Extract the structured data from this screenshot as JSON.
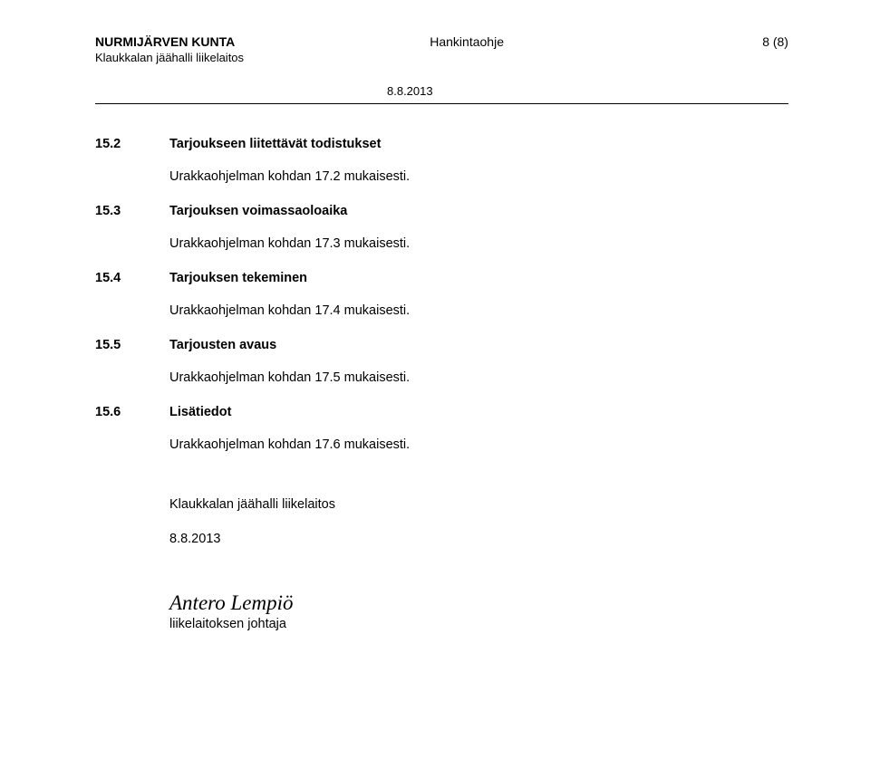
{
  "header": {
    "org_top": "NURMIJÄRVEN KUNTA",
    "org_sub": "Klaukkalan jäähalli liikelaitos",
    "doc_type": "Hankintaohje",
    "page_no": "8 (8)",
    "date": "8.8.2013"
  },
  "sections": [
    {
      "num": "15.2",
      "title": "Tarjoukseen liitettävät todistukset",
      "body": "Urakkaohjelman kohdan 17.2 mukaisesti."
    },
    {
      "num": "15.3",
      "title": "Tarjouksen voimassaoloaika",
      "body": "Urakkaohjelman kohdan 17.3 mukaisesti."
    },
    {
      "num": "15.4",
      "title": "Tarjouksen tekeminen",
      "body": "Urakkaohjelman kohdan 17.4 mukaisesti."
    },
    {
      "num": "15.5",
      "title": "Tarjousten avaus",
      "body": "Urakkaohjelman kohdan 17.5 mukaisesti."
    },
    {
      "num": "15.6",
      "title": "Lisätiedot",
      "body": "Urakkaohjelman kohdan 17.6 mukaisesti."
    }
  ],
  "footer": {
    "place": "Klaukkalan jäähalli liikelaitos",
    "date": "8.8.2013"
  },
  "signature": {
    "name": "Antero Lempiö",
    "title": "liikelaitoksen johtaja"
  }
}
